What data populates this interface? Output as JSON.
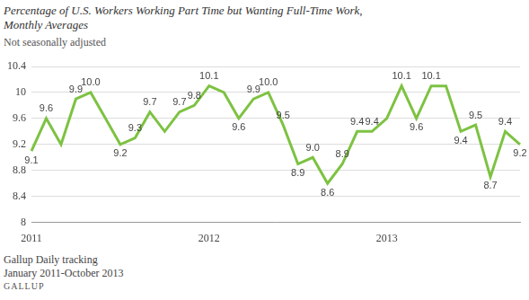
{
  "chart_data": {
    "type": "line",
    "title": [
      "Percentage of U.S. Workers Working Part Time but Wanting Full-Time Work,",
      "Monthly Averages"
    ],
    "subtitle": "Not seasonally adjusted",
    "footer": [
      "Gallup Daily tracking",
      "January 2011-October 2013",
      "GALLUP"
    ],
    "categories": [
      "2011",
      null,
      null,
      null,
      null,
      null,
      null,
      null,
      null,
      null,
      null,
      null,
      "2012",
      null,
      null,
      null,
      null,
      null,
      null,
      null,
      null,
      null,
      null,
      null,
      "2013",
      null,
      null,
      null,
      null,
      null,
      null,
      null,
      null,
      null
    ],
    "values": [
      9.1,
      9.6,
      9.2,
      9.9,
      10.0,
      9.6,
      9.2,
      9.3,
      9.7,
      9.4,
      9.7,
      9.8,
      10.1,
      10.0,
      9.6,
      9.9,
      10.0,
      9.5,
      8.9,
      9.0,
      8.6,
      8.9,
      9.4,
      9.4,
      9.6,
      10.1,
      9.6,
      10.1,
      10.1,
      9.4,
      9.5,
      8.7,
      9.4,
      9.2
    ],
    "value_labels": [
      "9.1",
      "9.6",
      null,
      "9.9",
      "10.0",
      null,
      "9.2",
      "9.3",
      "9.7",
      null,
      "9.7",
      "9.8",
      "10.1",
      null,
      "9.6",
      "9.9",
      "10.0",
      "9.5",
      "8.9",
      "9.0",
      "8.6",
      "8.9",
      "9.4",
      "9.4",
      null,
      "10.1",
      "9.6",
      "10.1",
      null,
      "9.4",
      "9.5",
      "8.7",
      "9.4",
      "9.2"
    ],
    "data_labels": true,
    "color": "#7dc242",
    "ylim": [
      8,
      10.4
    ],
    "yticks": [
      8,
      8.4,
      8.8,
      9.2,
      9.6,
      10,
      10.4
    ],
    "grid": true
  }
}
